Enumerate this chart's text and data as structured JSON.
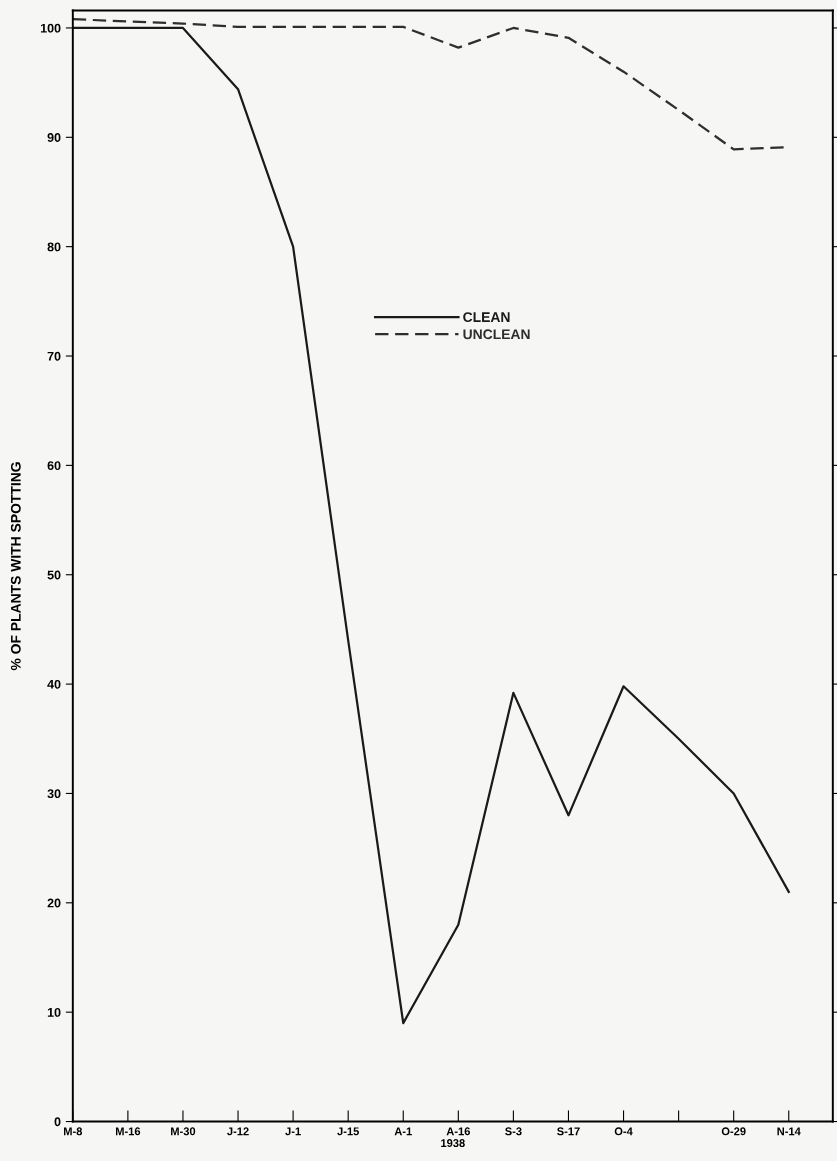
{
  "chart_data": {
    "type": "line",
    "xlabel": "1938",
    "ylabel": "% OF PLANTS WITH SPOTTING",
    "categories": [
      "M-8",
      "M-16",
      "M-30",
      "J-12",
      "J-1",
      "J-15",
      "A-1",
      "A-16",
      "S-3",
      "S-17",
      "O-4",
      null,
      "O-29",
      "N-14"
    ],
    "series": [
      {
        "name": "CLEAN",
        "color": "#1a1a1a",
        "line_style": "solid",
        "values": [
          100,
          100,
          100,
          94.4,
          80,
          44,
          9,
          18,
          39.2,
          28,
          39.8,
          35,
          30,
          21
        ]
      },
      {
        "name": "UNCLEAN",
        "color": "#2e2e2e",
        "line_style": "dashed",
        "values": [
          100.8,
          100.6,
          100.4,
          100.1,
          100.1,
          100.1,
          100.1,
          98.2,
          100,
          99.1,
          96,
          92.5,
          88.9,
          89.1
        ]
      }
    ],
    "ylim": [
      0,
      101.6
    ],
    "yticks": [
      0,
      10,
      20,
      30,
      40,
      50,
      60,
      70,
      80,
      90,
      100
    ],
    "legend": "top",
    "grid": false,
    "marker": "none"
  }
}
